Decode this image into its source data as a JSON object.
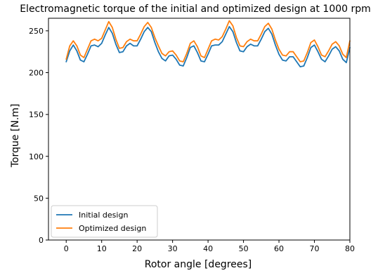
{
  "chart_data": {
    "type": "line",
    "title": "Electromagnetic torque of the initial and optimized design at 1000 rpm",
    "xlabel": "Rotor angle [degrees]",
    "ylabel": "Torque [N.m]",
    "xlim": [
      -5,
      80
    ],
    "ylim": [
      0,
      265
    ],
    "xticks": [
      0,
      10,
      20,
      30,
      40,
      50,
      60,
      70,
      80
    ],
    "yticks": [
      0,
      50,
      100,
      150,
      200,
      250
    ],
    "grid": false,
    "legend_position": "lower-left",
    "x": [
      0,
      1,
      2,
      3,
      4,
      5,
      6,
      7,
      8,
      9,
      10,
      11,
      12,
      13,
      14,
      15,
      16,
      17,
      18,
      19,
      20,
      21,
      22,
      23,
      24,
      25,
      26,
      27,
      28,
      29,
      30,
      31,
      32,
      33,
      34,
      35,
      36,
      37,
      38,
      39,
      40,
      41,
      42,
      43,
      44,
      45,
      46,
      47,
      48,
      49,
      50,
      51,
      52,
      53,
      54,
      55,
      56,
      57,
      58,
      59,
      60,
      61,
      62,
      63,
      64,
      65,
      66,
      67,
      68,
      69,
      70,
      71,
      72,
      73,
      74,
      75,
      76,
      77,
      78,
      79,
      80
    ],
    "series": [
      {
        "name": "Initial design",
        "color": "#1f77b4",
        "values": [
          213,
          226,
          233,
          226,
          215,
          213,
          222,
          232,
          233,
          231,
          235,
          245,
          254,
          247,
          234,
          224,
          225,
          232,
          235,
          232,
          232,
          240,
          249,
          254,
          249,
          236,
          225,
          217,
          214,
          220,
          221,
          216,
          209,
          208,
          218,
          230,
          232,
          224,
          214,
          213,
          222,
          232,
          233,
          233,
          237,
          246,
          255,
          249,
          236,
          226,
          225,
          231,
          234,
          232,
          232,
          240,
          249,
          253,
          246,
          233,
          222,
          215,
          214,
          219,
          219,
          213,
          207,
          208,
          218,
          230,
          233,
          225,
          216,
          213,
          220,
          228,
          231,
          226,
          216,
          212,
          230
        ]
      },
      {
        "name": "Optimized design",
        "color": "#ff7f0e",
        "values": [
          216,
          232,
          238,
          232,
          221,
          218,
          228,
          238,
          240,
          238,
          241,
          251,
          261,
          254,
          240,
          229,
          230,
          237,
          240,
          238,
          238,
          246,
          255,
          260,
          254,
          242,
          232,
          223,
          220,
          225,
          226,
          221,
          214,
          213,
          223,
          235,
          238,
          231,
          220,
          218,
          228,
          238,
          240,
          239,
          243,
          252,
          262,
          256,
          242,
          232,
          231,
          237,
          240,
          238,
          238,
          246,
          255,
          259,
          252,
          239,
          228,
          221,
          220,
          225,
          225,
          219,
          213,
          214,
          224,
          236,
          239,
          231,
          221,
          219,
          226,
          234,
          237,
          232,
          222,
          218,
          238
        ]
      }
    ]
  }
}
